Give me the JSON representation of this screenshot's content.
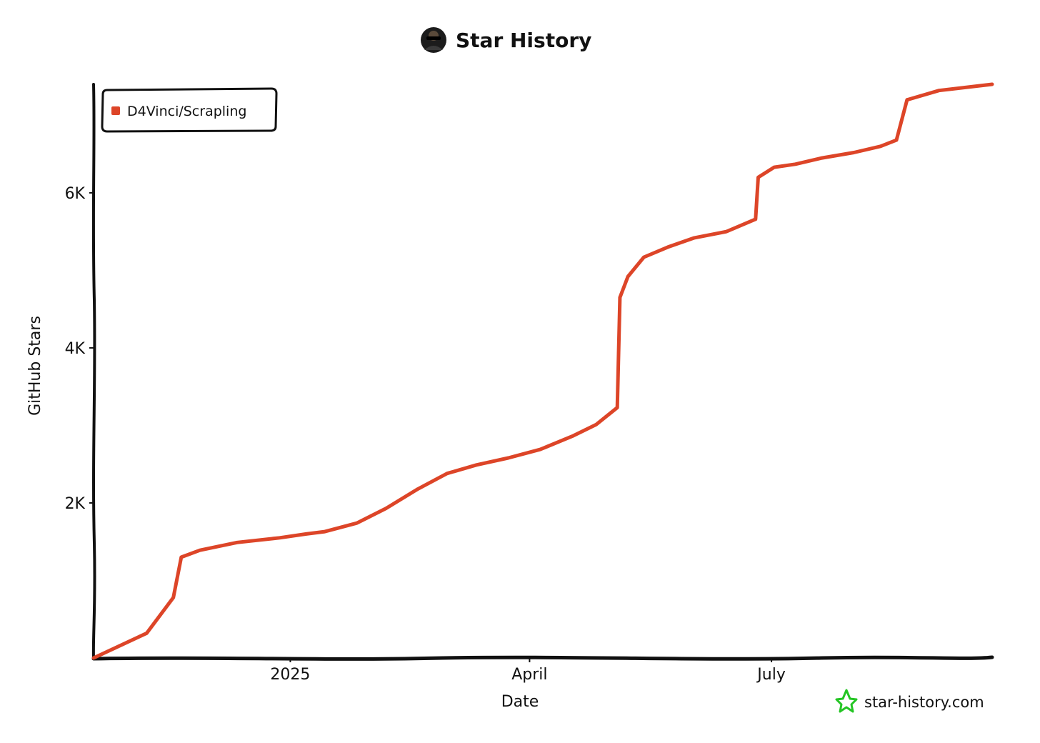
{
  "title": "Star History",
  "watermark": "star-history.com",
  "colors": {
    "series": "#dd4528",
    "axis": "#111111",
    "watermark_icon": "#24c524",
    "background": "#ffffff"
  },
  "icons": {
    "title": "user-avatar-icon",
    "watermark": "star-outline-icon"
  },
  "chart_data": {
    "type": "line",
    "title": "Star History",
    "xlabel": "Date",
    "ylabel": "GitHub Stars",
    "xlim": [
      "2024-10-19",
      "2025-09-22"
    ],
    "ylim": [
      0,
      7400
    ],
    "x_ticks": [
      {
        "date": "2025-01-01",
        "label": "2025"
      },
      {
        "date": "2025-04-01",
        "label": "April"
      },
      {
        "date": "2025-07-01",
        "label": "July"
      }
    ],
    "y_ticks": [
      {
        "value": 2000,
        "label": "2K"
      },
      {
        "value": 4000,
        "label": "4K"
      },
      {
        "value": 6000,
        "label": "6K"
      }
    ],
    "legend": {
      "position": "top-left",
      "entries": [
        "D4Vinci/Scrapling"
      ]
    },
    "grid": false,
    "series": [
      {
        "name": "D4Vinci/Scrapling",
        "points": [
          {
            "x": "2024-10-19",
            "y": 0
          },
          {
            "x": "2024-11-08",
            "y": 320
          },
          {
            "x": "2024-11-18",
            "y": 780
          },
          {
            "x": "2024-11-21",
            "y": 1300
          },
          {
            "x": "2024-11-28",
            "y": 1390
          },
          {
            "x": "2024-12-12",
            "y": 1490
          },
          {
            "x": "2024-12-28",
            "y": 1550
          },
          {
            "x": "2025-01-07",
            "y": 1600
          },
          {
            "x": "2025-01-14",
            "y": 1630
          },
          {
            "x": "2025-01-26",
            "y": 1740
          },
          {
            "x": "2025-02-06",
            "y": 1930
          },
          {
            "x": "2025-02-18",
            "y": 2180
          },
          {
            "x": "2025-03-01",
            "y": 2380
          },
          {
            "x": "2025-03-12",
            "y": 2490
          },
          {
            "x": "2025-03-24",
            "y": 2580
          },
          {
            "x": "2025-04-05",
            "y": 2690
          },
          {
            "x": "2025-04-17",
            "y": 2860
          },
          {
            "x": "2025-04-26",
            "y": 3010
          },
          {
            "x": "2025-05-04",
            "y": 3230
          },
          {
            "x": "2025-05-05",
            "y": 4650
          },
          {
            "x": "2025-05-08",
            "y": 4920
          },
          {
            "x": "2025-05-14",
            "y": 5170
          },
          {
            "x": "2025-05-23",
            "y": 5300
          },
          {
            "x": "2025-06-02",
            "y": 5420
          },
          {
            "x": "2025-06-14",
            "y": 5500
          },
          {
            "x": "2025-06-25",
            "y": 5660
          },
          {
            "x": "2025-06-26",
            "y": 6200
          },
          {
            "x": "2025-07-02",
            "y": 6330
          },
          {
            "x": "2025-07-10",
            "y": 6370
          },
          {
            "x": "2025-07-20",
            "y": 6450
          },
          {
            "x": "2025-08-01",
            "y": 6520
          },
          {
            "x": "2025-08-11",
            "y": 6600
          },
          {
            "x": "2025-08-17",
            "y": 6680
          },
          {
            "x": "2025-08-21",
            "y": 7200
          },
          {
            "x": "2025-09-02",
            "y": 7320
          },
          {
            "x": "2025-09-22",
            "y": 7400
          }
        ]
      }
    ]
  }
}
